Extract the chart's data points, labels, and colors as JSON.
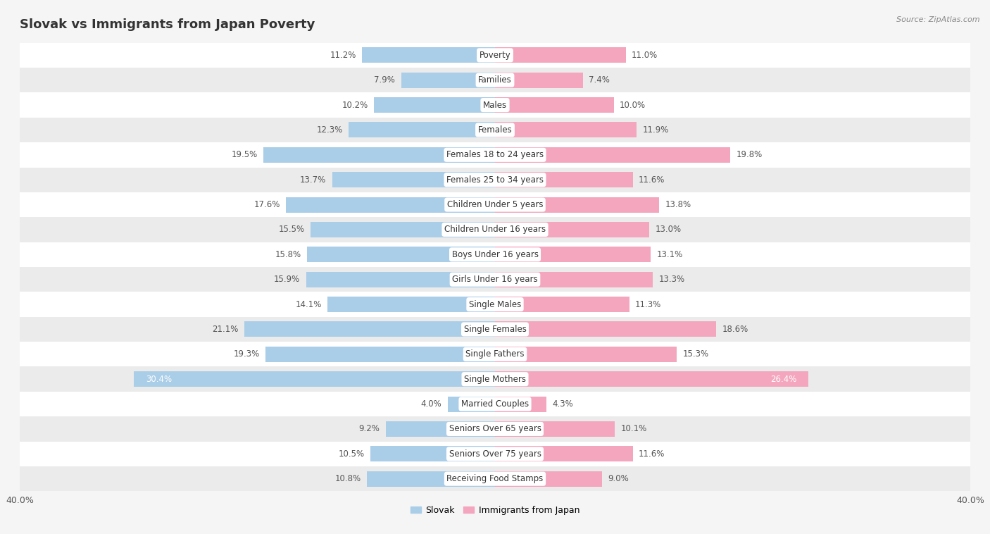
{
  "title": "Slovak vs Immigrants from Japan Poverty",
  "source": "Source: ZipAtlas.com",
  "categories": [
    "Poverty",
    "Families",
    "Males",
    "Females",
    "Females 18 to 24 years",
    "Females 25 to 34 years",
    "Children Under 5 years",
    "Children Under 16 years",
    "Boys Under 16 years",
    "Girls Under 16 years",
    "Single Males",
    "Single Females",
    "Single Fathers",
    "Single Mothers",
    "Married Couples",
    "Seniors Over 65 years",
    "Seniors Over 75 years",
    "Receiving Food Stamps"
  ],
  "slovak_values": [
    11.2,
    7.9,
    10.2,
    12.3,
    19.5,
    13.7,
    17.6,
    15.5,
    15.8,
    15.9,
    14.1,
    21.1,
    19.3,
    30.4,
    4.0,
    9.2,
    10.5,
    10.8
  ],
  "japan_values": [
    11.0,
    7.4,
    10.0,
    11.9,
    19.8,
    11.6,
    13.8,
    13.0,
    13.1,
    13.3,
    11.3,
    18.6,
    15.3,
    26.4,
    4.3,
    10.1,
    11.6,
    9.0
  ],
  "slovak_color": "#aacde8",
  "japan_color": "#f4a6be",
  "slovak_label": "Slovak",
  "japan_label": "Immigrants from Japan",
  "xlim": 40.0,
  "background_color": "#f5f5f5",
  "row_color_odd": "#ffffff",
  "row_color_even": "#ebebeb",
  "title_fontsize": 13,
  "label_fontsize": 8.5,
  "value_fontsize": 8.5,
  "axis_fontsize": 9
}
